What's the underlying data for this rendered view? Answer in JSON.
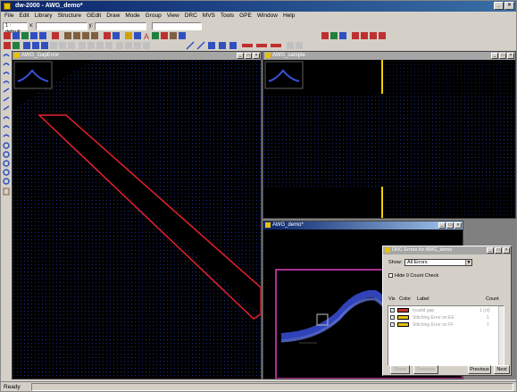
{
  "app": {
    "title": "dw-2000 - AWG_demo*",
    "title_buttons": [
      "_",
      "×"
    ]
  },
  "menus": [
    "File",
    "Edit",
    "Library",
    "Structure",
    "GEdit",
    "Draw",
    "Mode",
    "Group",
    "View",
    "DRC",
    "MVS",
    "Tools",
    "GPE",
    "Window",
    "Help"
  ],
  "toolbar": {
    "layer_combo": "1 : default",
    "x_label": "x:",
    "y_label": "y:",
    "dx_label": "dx:",
    "dy_label": "dy:"
  },
  "windows": {
    "gap_error": {
      "title": "AWG_GapError",
      "buttons": [
        "_",
        "□",
        "×"
      ]
    },
    "sample": {
      "title": "AWG_sample",
      "buttons": [
        "_",
        "□",
        "×"
      ]
    },
    "demo": {
      "title": "AWG_demo*",
      "buttons": [
        "_",
        "□",
        "×"
      ]
    }
  },
  "drc_dialog": {
    "title": "DRC Errors for AWG_demo",
    "show_label": "Show:",
    "show_value": "All Errors",
    "hide_zero_label": "Hide 0 Count Check",
    "columns": {
      "vis": "Vis",
      "color": "Color",
      "label": "Label",
      "count": "Count"
    },
    "errors": [
      {
        "label": "Invalid gap",
        "count": "1 (of)",
        "color": "#c0392b"
      },
      {
        "label": "Stitching Error on EE",
        "count": "1",
        "color": "#e6c200"
      },
      {
        "label": "Stitching Error on FF",
        "count": "1",
        "color": "#e6c200"
      }
    ],
    "buttons": {
      "show": "Show",
      "remove": "Remove",
      "previous": "Previous",
      "next": "Next"
    }
  },
  "status": {
    "text": "Ready"
  },
  "colors": {
    "error_outline": "#e8202a",
    "grid_dot": "#1b2f8a",
    "waveguide": "#3a4fd8",
    "boundary": "#e040c0",
    "marker": "#f0d000"
  }
}
